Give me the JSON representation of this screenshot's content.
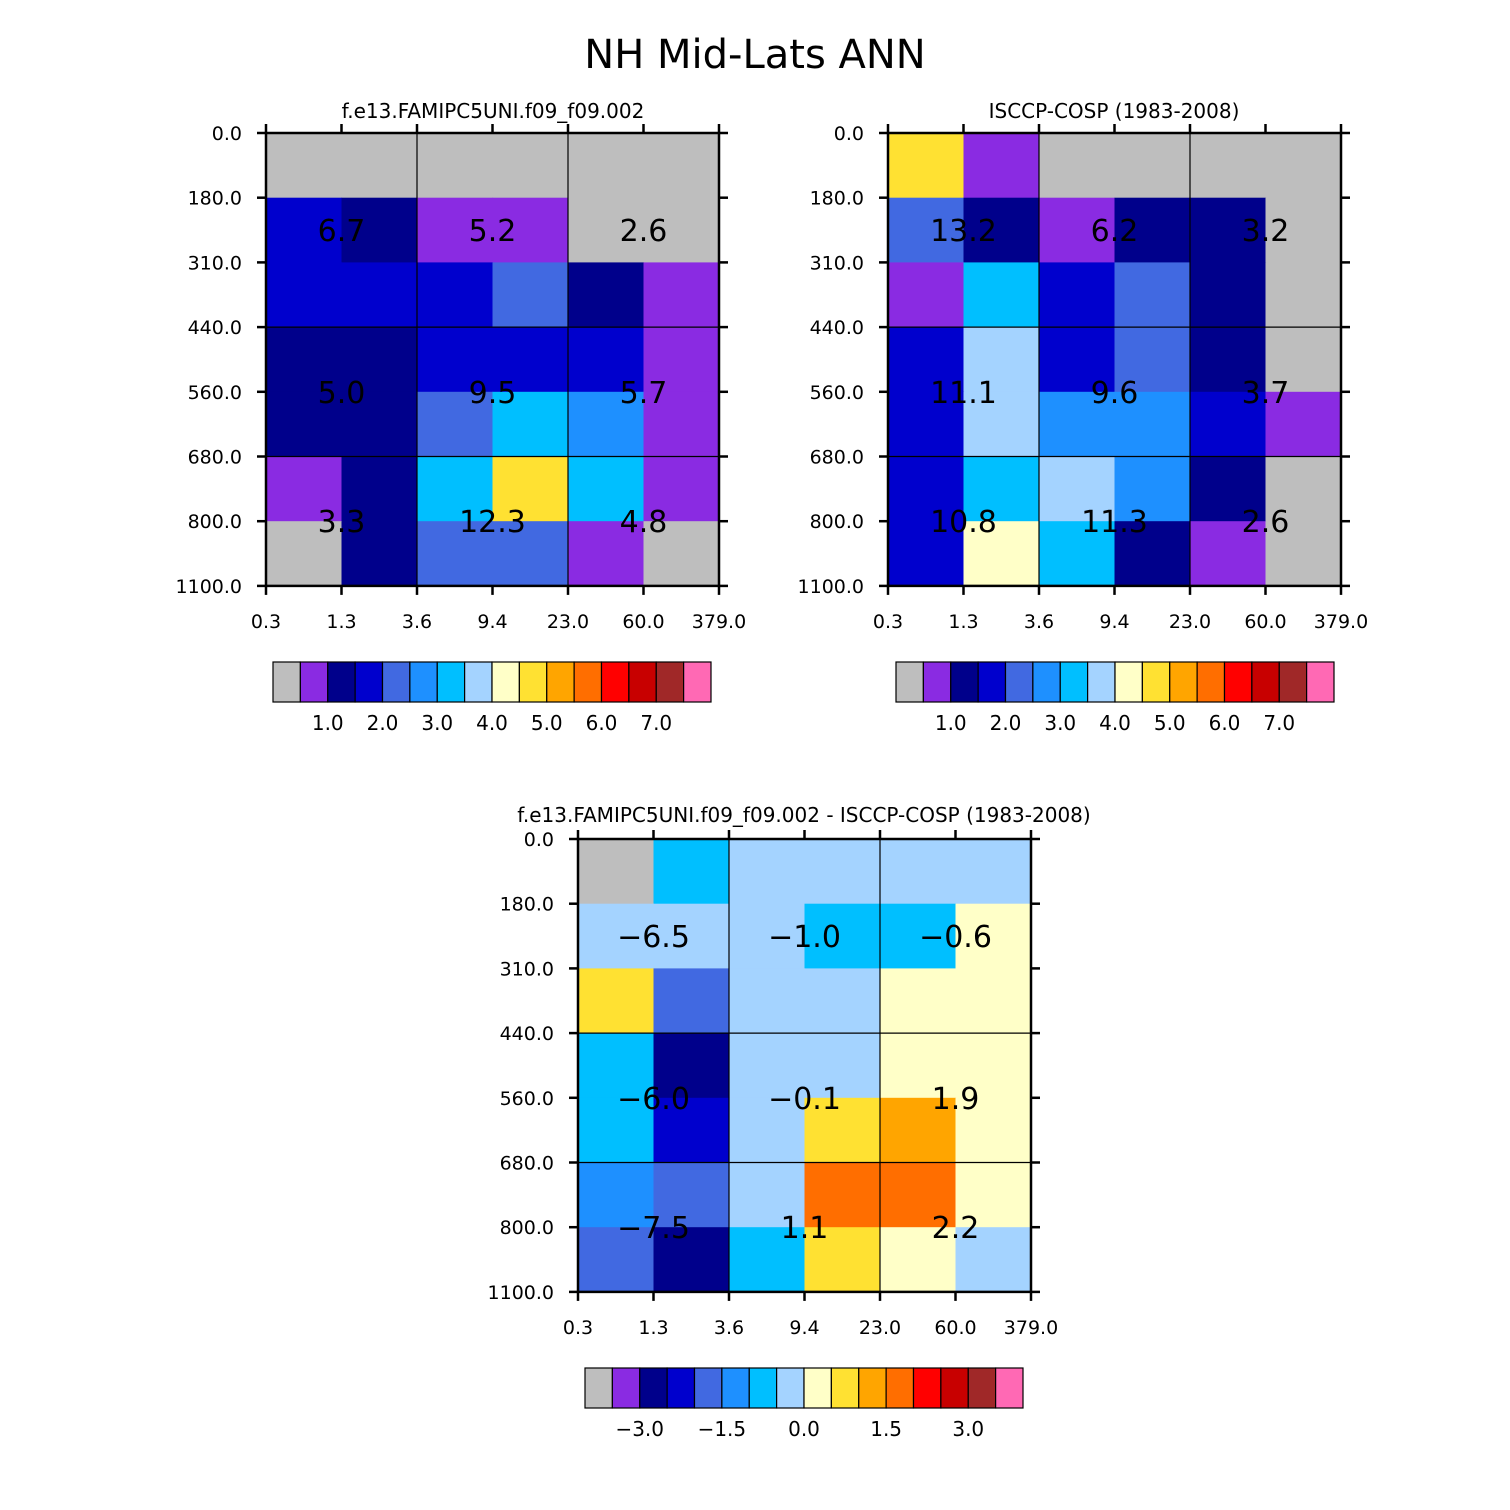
{
  "main_title": "NH Mid-Lats ANN",
  "chart_data": [
    {
      "type": "heatmap",
      "title": "f.e13.FAMIPC5UNI.f09_f09.002",
      "x_ticks": [
        "0.3",
        "1.3",
        "3.6",
        "9.4",
        "23.0",
        "60.0",
        "379.0"
      ],
      "y_ticks": [
        "0.0",
        "180.0",
        "310.0",
        "440.0",
        "560.0",
        "680.0",
        "800.0",
        "1100.0"
      ],
      "grid_colors": [
        [
          "#bebebe",
          "#bebebe",
          "#bebebe",
          "#bebebe",
          "#bebebe",
          "#bebebe"
        ],
        [
          "#0000cd",
          "#00008b",
          "#8a2be2",
          "#8a2be2",
          "#bebebe",
          "#bebebe"
        ],
        [
          "#0000cd",
          "#0000cd",
          "#0000cd",
          "#4169e1",
          "#00008b",
          "#8a2be2"
        ],
        [
          "#00008b",
          "#00008b",
          "#0000cd",
          "#0000cd",
          "#0000cd",
          "#8a2be2"
        ],
        [
          "#00008b",
          "#00008b",
          "#4169e1",
          "#00bfff",
          "#1e90ff",
          "#8a2be2"
        ],
        [
          "#8a2be2",
          "#00008b",
          "#00bfff",
          "#ffe132",
          "#00bfff",
          "#8a2be2"
        ],
        [
          "#bebebe",
          "#00008b",
          "#4169e1",
          "#4169e1",
          "#8a2be2",
          "#bebebe"
        ]
      ],
      "block_values": [
        [
          "6.7",
          "5.2",
          "2.6"
        ],
        [
          "5.0",
          "9.5",
          "5.7"
        ],
        [
          "3.3",
          "12.3",
          "4.8"
        ]
      ],
      "colorbar": {
        "colors": [
          "#bebebe",
          "#8a2be2",
          "#00008b",
          "#0000cd",
          "#4169e1",
          "#1e90ff",
          "#00bfff",
          "#a4d3ff",
          "#ffffc8",
          "#ffe132",
          "#ffa500",
          "#ff6e00",
          "#ff0000",
          "#c80000",
          "#a02828",
          "#ff69b4"
        ],
        "labels": [
          "1.0",
          "2.0",
          "3.0",
          "4.0",
          "5.0",
          "6.0",
          "7.0"
        ]
      }
    },
    {
      "type": "heatmap",
      "title": "ISCCP-COSP (1983-2008)",
      "x_ticks": [
        "0.3",
        "1.3",
        "3.6",
        "9.4",
        "23.0",
        "60.0",
        "379.0"
      ],
      "y_ticks": [
        "0.0",
        "180.0",
        "310.0",
        "440.0",
        "560.0",
        "680.0",
        "800.0",
        "1100.0"
      ],
      "grid_colors": [
        [
          "#ffe132",
          "#8a2be2",
          "#bebebe",
          "#bebebe",
          "#bebebe",
          "#bebebe"
        ],
        [
          "#4169e1",
          "#00008b",
          "#8a2be2",
          "#00008b",
          "#00008b",
          "#bebebe"
        ],
        [
          "#8a2be2",
          "#00bfff",
          "#0000cd",
          "#4169e1",
          "#00008b",
          "#bebebe"
        ],
        [
          "#0000cd",
          "#a4d3ff",
          "#0000cd",
          "#4169e1",
          "#00008b",
          "#bebebe"
        ],
        [
          "#0000cd",
          "#a4d3ff",
          "#1e90ff",
          "#1e90ff",
          "#0000cd",
          "#8a2be2"
        ],
        [
          "#0000cd",
          "#00bfff",
          "#a4d3ff",
          "#1e90ff",
          "#00008b",
          "#bebebe"
        ],
        [
          "#0000cd",
          "#ffffc8",
          "#00bfff",
          "#00008b",
          "#8a2be2",
          "#bebebe"
        ]
      ],
      "block_values": [
        [
          "13.2",
          "6.2",
          "3.2"
        ],
        [
          "11.1",
          "9.6",
          "3.7"
        ],
        [
          "10.8",
          "11.3",
          "2.6"
        ]
      ],
      "colorbar": {
        "colors": [
          "#bebebe",
          "#8a2be2",
          "#00008b",
          "#0000cd",
          "#4169e1",
          "#1e90ff",
          "#00bfff",
          "#a4d3ff",
          "#ffffc8",
          "#ffe132",
          "#ffa500",
          "#ff6e00",
          "#ff0000",
          "#c80000",
          "#a02828",
          "#ff69b4"
        ],
        "labels": [
          "1.0",
          "2.0",
          "3.0",
          "4.0",
          "5.0",
          "6.0",
          "7.0"
        ]
      }
    },
    {
      "type": "heatmap",
      "title": "f.e13.FAMIPC5UNI.f09_f09.002 - ISCCP-COSP (1983-2008)",
      "x_ticks": [
        "0.3",
        "1.3",
        "3.6",
        "9.4",
        "23.0",
        "60.0",
        "379.0"
      ],
      "y_ticks": [
        "0.0",
        "180.0",
        "310.0",
        "440.0",
        "560.0",
        "680.0",
        "800.0",
        "1100.0"
      ],
      "grid_colors": [
        [
          "#bebebe",
          "#00bfff",
          "#a4d3ff",
          "#a4d3ff",
          "#a4d3ff",
          "#a4d3ff"
        ],
        [
          "#a4d3ff",
          "#a4d3ff",
          "#a4d3ff",
          "#00bfff",
          "#00bfff",
          "#ffffc8"
        ],
        [
          "#ffe132",
          "#4169e1",
          "#a4d3ff",
          "#a4d3ff",
          "#ffffc8",
          "#ffffc8"
        ],
        [
          "#00bfff",
          "#00008b",
          "#a4d3ff",
          "#a4d3ff",
          "#ffffc8",
          "#ffffc8"
        ],
        [
          "#00bfff",
          "#0000cd",
          "#a4d3ff",
          "#ffe132",
          "#ffa500",
          "#ffffc8"
        ],
        [
          "#1e90ff",
          "#4169e1",
          "#a4d3ff",
          "#ff6e00",
          "#ff6e00",
          "#ffffc8"
        ],
        [
          "#4169e1",
          "#00008b",
          "#00bfff",
          "#ffe132",
          "#ffffc8",
          "#a4d3ff"
        ]
      ],
      "block_values": [
        [
          "-6.5",
          "-1.0",
          "-0.6"
        ],
        [
          "-6.0",
          "-0.1",
          "1.9"
        ],
        [
          "-7.5",
          "1.1",
          "2.2"
        ]
      ],
      "colorbar": {
        "colors": [
          "#bebebe",
          "#8a2be2",
          "#00008b",
          "#0000cd",
          "#4169e1",
          "#1e90ff",
          "#00bfff",
          "#a4d3ff",
          "#ffffc8",
          "#ffe132",
          "#ffa500",
          "#ff6e00",
          "#ff0000",
          "#c80000",
          "#a02828",
          "#ff69b4"
        ],
        "labels": [
          "-3.0",
          "-1.5",
          "0.0",
          "1.5",
          "3.0"
        ]
      }
    }
  ]
}
